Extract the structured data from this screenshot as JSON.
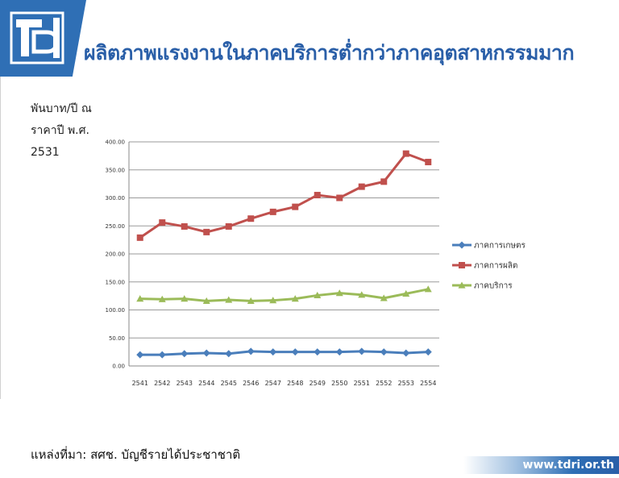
{
  "header": {
    "title": "ผลิตภาพแรงงานในภาคบริการต่ำกว่าภาคอุตสาหกรรมมาก",
    "logo_icon": "tdri-logo-icon",
    "brand_color": "#2f6fb5"
  },
  "unit_label": {
    "line1": "พันบาท/ปี ณ",
    "line2": "ราคาปี พ.ศ.",
    "line3": "2531"
  },
  "source_text": "แหล่งที่มา: สศช. บัญชีรายได้ประชาชาติ",
  "footer_url": "www.tdri.or.th",
  "chart_data": {
    "type": "line",
    "x": [
      "2541",
      "2542",
      "2543",
      "2544",
      "2545",
      "2546",
      "2547",
      "2548",
      "2549",
      "2550",
      "2551",
      "2552",
      "2553",
      "2554"
    ],
    "ylim": [
      0,
      400
    ],
    "yticks": [
      "0.00",
      "50.00",
      "100.00",
      "150.00",
      "200.00",
      "250.00",
      "300.00",
      "350.00",
      "400.00"
    ],
    "grid": true,
    "legend_position": "right",
    "series": [
      {
        "name": "ภาคการเกษตร",
        "color": "#4a7ebb",
        "marker": "diamond",
        "values": [
          20,
          20,
          22,
          23,
          22,
          26,
          25,
          25,
          25,
          25,
          26,
          25,
          23,
          25
        ]
      },
      {
        "name": "ภาคการผลิต",
        "color": "#c0504d",
        "marker": "square",
        "values": [
          229,
          256,
          249,
          239,
          249,
          263,
          275,
          284,
          305,
          300,
          320,
          329,
          379,
          364
        ]
      },
      {
        "name": "ภาคบริการ",
        "color": "#9bbb59",
        "marker": "triangle",
        "values": [
          120,
          119,
          120,
          116,
          118,
          116,
          117,
          120,
          126,
          130,
          127,
          121,
          129,
          137
        ]
      }
    ]
  }
}
